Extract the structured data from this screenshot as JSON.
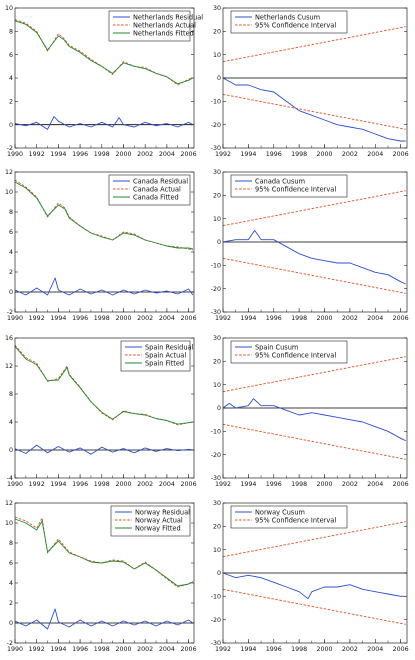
{
  "chart_data": [
    {
      "type": "line",
      "title": "",
      "xlabel": "",
      "ylabel": "",
      "xlim": [
        1990,
        2006.5
      ],
      "ylim": [
        -2,
        10
      ],
      "xticks": [
        "1990",
        "1992",
        "1994",
        "1996",
        "1998",
        "2000",
        "2002",
        "2004",
        "2006"
      ],
      "yticks": [
        "-2",
        "0",
        "2",
        "4",
        "6",
        "8",
        "10"
      ],
      "legend_position": "top-right",
      "series": [
        {
          "name": "Netherlands Residual",
          "color": "#2b4fd1",
          "style": "solid",
          "x": [
            1990,
            1991,
            1992,
            1993,
            1993.6,
            1994,
            1995,
            1996,
            1997,
            1998,
            1999,
            1999.6,
            2000,
            2001,
            2002,
            2003,
            2004,
            2005,
            2006,
            2006.4
          ],
          "y": [
            0.1,
            -0.1,
            0.2,
            -0.4,
            0.7,
            0.3,
            -0.2,
            0.1,
            -0.2,
            0.2,
            -0.2,
            0.6,
            0.0,
            -0.2,
            0.2,
            -0.1,
            0.1,
            -0.2,
            0.2,
            0.0
          ]
        },
        {
          "name": "Netherlands Actual",
          "color": "#e2501d",
          "style": "dashed",
          "x": [
            1990,
            1991,
            1992,
            1993,
            1994,
            1994.5,
            1995,
            1996,
            1997,
            1998,
            1999,
            2000,
            2001,
            2002,
            2003,
            2004,
            2005,
            2006,
            2006.4
          ],
          "y": [
            9.0,
            8.7,
            8.0,
            6.3,
            7.8,
            7.4,
            6.8,
            6.3,
            5.6,
            5.0,
            4.3,
            5.4,
            5.0,
            4.9,
            4.4,
            4.1,
            3.4,
            3.9,
            4.0
          ]
        },
        {
          "name": "Netherlands Fitted",
          "color": "#1f8a2f",
          "style": "solid",
          "x": [
            1990,
            1991,
            1992,
            1993,
            1994,
            1994.5,
            1995,
            1996,
            1997,
            1998,
            1999,
            2000,
            2001,
            2002,
            2003,
            2004,
            2005,
            2006,
            2006.4
          ],
          "y": [
            8.9,
            8.6,
            7.9,
            6.4,
            7.6,
            7.3,
            6.7,
            6.2,
            5.5,
            5.0,
            4.4,
            5.3,
            5.0,
            4.8,
            4.4,
            4.1,
            3.5,
            3.8,
            4.0
          ]
        }
      ]
    },
    {
      "type": "line",
      "title": "",
      "xlabel": "",
      "ylabel": "",
      "xlim": [
        1992,
        2006.5
      ],
      "ylim": [
        -30,
        30
      ],
      "xticks": [
        "1992",
        "1994",
        "1996",
        "1998",
        "2000",
        "2002",
        "2004",
        "2006"
      ],
      "yticks": [
        "-30",
        "-20",
        "-10",
        "0",
        "10",
        "20",
        "30"
      ],
      "legend_position": "top-left",
      "series": [
        {
          "name": "Netherlands Cusum",
          "color": "#2b4fd1",
          "style": "solid",
          "x": [
            1992,
            1993,
            1994,
            1995,
            1996,
            1997,
            1998,
            1999,
            2000,
            2001,
            2002,
            2003,
            2004,
            2005,
            2006,
            2006.4
          ],
          "y": [
            0,
            -3,
            -3,
            -5,
            -6,
            -10,
            -14,
            -16,
            -18,
            -20,
            -21,
            -22,
            -24,
            -26,
            -27,
            -27
          ]
        },
        {
          "name": "95% Confidence Interval",
          "color": "#e2501d",
          "style": "dashed",
          "x": [
            1992,
            2006.4
          ],
          "y": [
            7,
            22
          ]
        },
        {
          "name": "",
          "color": "#e2501d",
          "style": "dashed",
          "x": [
            1992,
            2006.4
          ],
          "y": [
            -7,
            -22
          ]
        }
      ]
    },
    {
      "type": "line",
      "title": "",
      "xlabel": "",
      "ylabel": "",
      "xlim": [
        1990,
        2006.5
      ],
      "ylim": [
        -2,
        12
      ],
      "xticks": [
        "1990",
        "1992",
        "1994",
        "1996",
        "1998",
        "2000",
        "2002",
        "2004",
        "2006"
      ],
      "yticks": [
        "-2",
        "0",
        "2",
        "4",
        "6",
        "8",
        "10",
        "12"
      ],
      "legend_position": "top-right",
      "series": [
        {
          "name": "Canada Residual",
          "color": "#2b4fd1",
          "style": "solid",
          "x": [
            1990,
            1991,
            1992,
            1993,
            1993.7,
            1994,
            1995,
            1996,
            1997,
            1998,
            1999,
            2000,
            2001,
            2002,
            2003,
            2004,
            2005,
            2006,
            2006.4
          ],
          "y": [
            0.2,
            -0.3,
            0.4,
            -0.3,
            1.4,
            0.2,
            -0.3,
            0.3,
            -0.2,
            0.2,
            -0.3,
            0.2,
            -0.2,
            0.2,
            -0.1,
            0.1,
            -0.2,
            0.3,
            -0.3
          ]
        },
        {
          "name": "Canada Actual",
          "color": "#e2501d",
          "style": "dashed",
          "x": [
            1990,
            1991,
            1992,
            1993,
            1994,
            1994.6,
            1995,
            1996,
            1997,
            1998,
            1999,
            2000,
            2001,
            2002,
            2003,
            2004,
            2005,
            2006,
            2006.4
          ],
          "y": [
            11.2,
            10.5,
            9.5,
            7.5,
            8.9,
            8.4,
            7.5,
            6.6,
            5.9,
            5.6,
            5.2,
            6.0,
            5.8,
            5.2,
            4.9,
            4.6,
            4.5,
            4.3,
            4.2
          ]
        },
        {
          "name": "Canada Fitted",
          "color": "#1f8a2f",
          "style": "solid",
          "x": [
            1990,
            1991,
            1992,
            1993,
            1994,
            1994.6,
            1995,
            1996,
            1997,
            1998,
            1999,
            2000,
            2001,
            2002,
            2003,
            2004,
            2005,
            2006,
            2006.4
          ],
          "y": [
            11.0,
            10.4,
            9.4,
            7.6,
            8.7,
            8.3,
            7.4,
            6.6,
            5.9,
            5.5,
            5.2,
            5.9,
            5.7,
            5.2,
            4.9,
            4.6,
            4.4,
            4.4,
            4.3
          ]
        }
      ]
    },
    {
      "type": "line",
      "title": "",
      "xlabel": "",
      "ylabel": "",
      "xlim": [
        1992,
        2006.5
      ],
      "ylim": [
        -30,
        30
      ],
      "xticks": [
        "1992",
        "1994",
        "1996",
        "1998",
        "2000",
        "2002",
        "2004",
        "2006"
      ],
      "yticks": [
        "-30",
        "-20",
        "-10",
        "0",
        "10",
        "20",
        "30"
      ],
      "legend_position": "top-left",
      "series": [
        {
          "name": "Canada Cusum",
          "color": "#2b4fd1",
          "style": "solid",
          "x": [
            1992,
            1993,
            1994,
            1994.5,
            1995,
            1996,
            1997,
            1998,
            1999,
            2000,
            2001,
            2002,
            2003,
            2004,
            2005,
            2006,
            2006.4
          ],
          "y": [
            0,
            1,
            1,
            5,
            1,
            1,
            -2,
            -5,
            -7,
            -8,
            -9,
            -9,
            -11,
            -13,
            -14,
            -17,
            -18
          ]
        },
        {
          "name": "95% Confidence Interval",
          "color": "#e2501d",
          "style": "dashed",
          "x": [
            1992,
            2006.4
          ],
          "y": [
            7,
            22
          ]
        },
        {
          "name": "",
          "color": "#e2501d",
          "style": "dashed",
          "x": [
            1992,
            2006.4
          ],
          "y": [
            -7,
            -22
          ]
        }
      ]
    },
    {
      "type": "line",
      "title": "",
      "xlabel": "",
      "ylabel": "",
      "xlim": [
        1990,
        2006.5
      ],
      "ylim": [
        -4,
        16
      ],
      "xticks": [
        "1990",
        "1992",
        "1994",
        "1996",
        "1998",
        "2000",
        "2002",
        "2004",
        "2006"
      ],
      "yticks": [
        "-4",
        "0",
        "4",
        "8",
        "12",
        "16"
      ],
      "legend_position": "top-right",
      "series": [
        {
          "name": "Spain Residual",
          "color": "#2b4fd1",
          "style": "solid",
          "x": [
            1990,
            1991,
            1992,
            1993,
            1994,
            1995,
            1996,
            1997,
            1998,
            1999,
            2000,
            2001,
            2002,
            2003,
            2004,
            2005,
            2006,
            2006.4
          ],
          "y": [
            0.2,
            -0.5,
            0.7,
            -0.4,
            0.5,
            -0.3,
            0.3,
            -0.6,
            0.4,
            -0.3,
            0.2,
            -0.4,
            0.3,
            -0.2,
            0.2,
            -0.1,
            0.1,
            0.0
          ]
        },
        {
          "name": "Spain Actual",
          "color": "#e2501d",
          "style": "dashed",
          "x": [
            1990,
            1991,
            1992,
            1993,
            1994,
            1994.8,
            1995,
            1996,
            1997,
            1998,
            1999,
            2000,
            2001,
            2002,
            2003,
            2004,
            2005,
            2006,
            2006.4
          ],
          "y": [
            15.0,
            13.2,
            12.4,
            9.8,
            10.2,
            12.0,
            10.8,
            9.0,
            6.9,
            5.3,
            4.3,
            5.6,
            5.2,
            5.1,
            4.5,
            4.2,
            3.6,
            3.9,
            4.0
          ]
        },
        {
          "name": "Spain Fitted",
          "color": "#1f8a2f",
          "style": "solid",
          "x": [
            1990,
            1991,
            1992,
            1993,
            1994,
            1994.8,
            1995,
            1996,
            1997,
            1998,
            1999,
            2000,
            2001,
            2002,
            2003,
            2004,
            2005,
            2006,
            2006.4
          ],
          "y": [
            14.8,
            13.0,
            12.2,
            9.9,
            10.0,
            11.8,
            10.7,
            8.9,
            6.9,
            5.4,
            4.4,
            5.5,
            5.2,
            5.0,
            4.5,
            4.2,
            3.7,
            3.9,
            4.0
          ]
        }
      ]
    },
    {
      "type": "line",
      "title": "",
      "xlabel": "",
      "ylabel": "",
      "xlim": [
        1992,
        2006.5
      ],
      "ylim": [
        -30,
        30
      ],
      "xticks": [
        "1992",
        "1994",
        "1996",
        "1998",
        "2000",
        "2002",
        "2004",
        "2006"
      ],
      "yticks": [
        "-30",
        "-20",
        "-10",
        "0",
        "10",
        "20",
        "30"
      ],
      "legend_position": "top-left",
      "series": [
        {
          "name": "Spain Cusum",
          "color": "#2b4fd1",
          "style": "solid",
          "x": [
            1992,
            1992.5,
            1993,
            1994,
            1994.4,
            1995,
            1996,
            1997,
            1998,
            1999,
            2000,
            2001,
            2002,
            2003,
            2004,
            2005,
            2006,
            2006.4
          ],
          "y": [
            0,
            2,
            0,
            1,
            4,
            1,
            1,
            -1,
            -3,
            -2,
            -3,
            -4,
            -5,
            -6,
            -8,
            -10,
            -13,
            -14
          ]
        },
        {
          "name": "95% Confidence Interval",
          "color": "#e2501d",
          "style": "dashed",
          "x": [
            1992,
            2006.4
          ],
          "y": [
            7,
            22
          ]
        },
        {
          "name": "",
          "color": "#e2501d",
          "style": "dashed",
          "x": [
            1992,
            2006.4
          ],
          "y": [
            -7,
            -22
          ]
        }
      ]
    },
    {
      "type": "line",
      "title": "",
      "xlabel": "",
      "ylabel": "",
      "xlim": [
        1990,
        2006.5
      ],
      "ylim": [
        -2,
        12
      ],
      "xticks": [
        "1990",
        "1992",
        "1994",
        "1996",
        "1998",
        "2000",
        "2002",
        "2004",
        "2006"
      ],
      "yticks": [
        "-2",
        "0",
        "2",
        "4",
        "6",
        "8",
        "10",
        "12"
      ],
      "legend_position": "top-right",
      "series": [
        {
          "name": "Norway Residual",
          "color": "#2b4fd1",
          "style": "solid",
          "x": [
            1990,
            1991,
            1992,
            1993,
            1993.7,
            1994,
            1995,
            1996,
            1997,
            1998,
            1999,
            2000,
            2001,
            2002,
            2003,
            2004,
            2005,
            2006,
            2006.4
          ],
          "y": [
            0.2,
            -0.3,
            0.3,
            -0.6,
            1.4,
            0.1,
            -0.4,
            0.3,
            -0.3,
            0.2,
            -0.3,
            0.2,
            -0.2,
            0.2,
            -0.3,
            0.2,
            -0.2,
            0.3,
            0.0
          ]
        },
        {
          "name": "Norway Actual",
          "color": "#e2501d",
          "style": "dashed",
          "x": [
            1990,
            1991,
            1992,
            1992.5,
            1993,
            1994,
            1995,
            1996,
            1997,
            1998,
            1999,
            2000,
            2001,
            2002,
            2003,
            2004,
            2005,
            2006,
            2006.4
          ],
          "y": [
            10.6,
            10.2,
            9.5,
            10.5,
            7.0,
            8.4,
            7.1,
            6.6,
            6.2,
            6.0,
            6.3,
            6.2,
            5.4,
            6.1,
            5.3,
            4.4,
            3.6,
            3.9,
            4.2
          ]
        },
        {
          "name": "Norway Fitted",
          "color": "#1f8a2f",
          "style": "solid",
          "x": [
            1990,
            1991,
            1992,
            1992.5,
            1993,
            1994,
            1995,
            1996,
            1997,
            1998,
            1999,
            2000,
            2001,
            2002,
            2003,
            2004,
            2005,
            2006,
            2006.4
          ],
          "y": [
            10.4,
            10.0,
            9.3,
            10.2,
            7.1,
            8.2,
            7.0,
            6.6,
            6.1,
            6.0,
            6.2,
            6.1,
            5.4,
            6.0,
            5.3,
            4.5,
            3.7,
            3.9,
            4.1
          ]
        }
      ]
    },
    {
      "type": "line",
      "title": "",
      "xlabel": "",
      "ylabel": "",
      "xlim": [
        1992,
        2006.5
      ],
      "ylim": [
        -30,
        30
      ],
      "xticks": [
        "1992",
        "1994",
        "1996",
        "1998",
        "2000",
        "2002",
        "2004",
        "2006"
      ],
      "yticks": [
        "-30",
        "-20",
        "-10",
        "0",
        "10",
        "20",
        "30"
      ],
      "legend_position": "top-left",
      "series": [
        {
          "name": "Norway Cusum",
          "color": "#2b4fd1",
          "style": "solid",
          "x": [
            1992,
            1993,
            1994,
            1995,
            1996,
            1997,
            1998,
            1998.7,
            1999,
            2000,
            2001,
            2002,
            2003,
            2004,
            2005,
            2006,
            2006.4
          ],
          "y": [
            0,
            -2,
            -1,
            -2,
            -4,
            -6,
            -8,
            -11,
            -8,
            -6,
            -6,
            -5,
            -7,
            -8,
            -9,
            -10,
            -10
          ]
        },
        {
          "name": "95% Confidence Interval",
          "color": "#e2501d",
          "style": "dashed",
          "x": [
            1992,
            2006.4
          ],
          "y": [
            7,
            22
          ]
        },
        {
          "name": "",
          "color": "#e2501d",
          "style": "dashed",
          "x": [
            1992,
            2006.4
          ],
          "y": [
            -7,
            -22
          ]
        }
      ]
    }
  ]
}
